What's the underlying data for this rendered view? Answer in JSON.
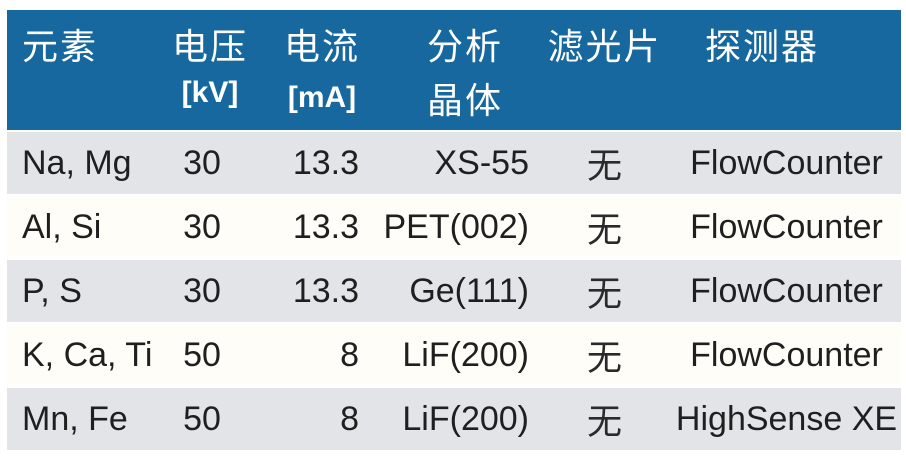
{
  "table": {
    "title": "XRF measurement conditions table",
    "columns": [
      {
        "id": "element",
        "line1": "元素",
        "line2": ""
      },
      {
        "id": "voltage",
        "line1": "电压",
        "line2": "[kV]"
      },
      {
        "id": "current",
        "line1": "电流",
        "line2": "[mA]"
      },
      {
        "id": "crystal",
        "line1": "分析",
        "line2": "晶体"
      },
      {
        "id": "filter",
        "line1": "滤光片",
        "line2": ""
      },
      {
        "id": "detector",
        "line1": "探测器",
        "line2": ""
      }
    ],
    "rows": [
      {
        "element": "Na, Mg",
        "voltage": "30",
        "current": "13.3",
        "crystal": "XS-55",
        "filter": "无",
        "detector": "FlowCounter"
      },
      {
        "element": "Al, Si",
        "voltage": "30",
        "current": "13.3",
        "crystal": "PET(002)",
        "filter": "无",
        "detector": "FlowCounter"
      },
      {
        "element": "P, S",
        "voltage": "30",
        "current": "13.3",
        "crystal": "Ge(111)",
        "filter": "无",
        "detector": "FlowCounter"
      },
      {
        "element": "K, Ca, Ti",
        "voltage": "50",
        "current": "8",
        "crystal": "LiF(200)",
        "filter": "无",
        "detector": "FlowCounter"
      },
      {
        "element": "Mn, Fe",
        "voltage": "50",
        "current": "8",
        "crystal": "LiF(200)",
        "filter": "无",
        "detector": "HighSense XE"
      }
    ]
  },
  "colors": {
    "header_bg": "#16689f",
    "header_text": "#ffffff",
    "row_gray": "#e2e4e7",
    "row_cream": "#fffdf7",
    "page_bg": "#ffffff",
    "text": "#1f1f1f"
  }
}
